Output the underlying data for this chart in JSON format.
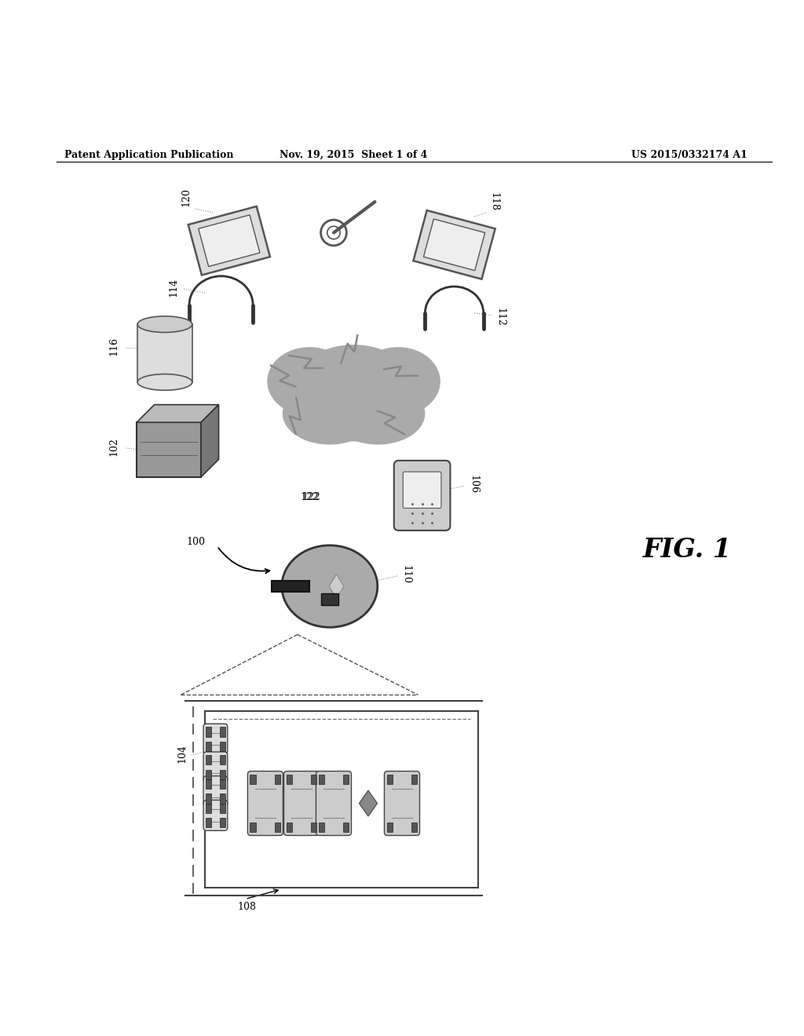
{
  "bg_color": "#ffffff",
  "header_left": "Patent Application Publication",
  "header_mid": "Nov. 19, 2015  Sheet 1 of 4",
  "header_right": "US 2015/0332174 A1",
  "fig_label": "FIG. 1"
}
